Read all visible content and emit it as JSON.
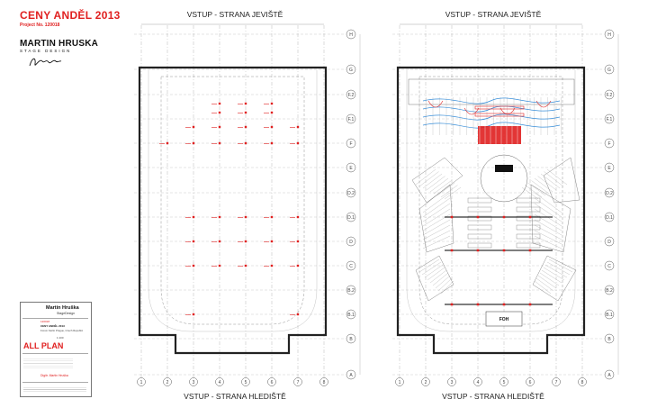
{
  "brand": {
    "title": "CENY ANDĚL 2013",
    "project": "Project No. 120018",
    "logo_name": "MARTIN HRUSKA",
    "logo_sub": "STAGE DESIGN"
  },
  "views": [
    {
      "top_label": "VSTUP - STRANA JEVIŠTĚ",
      "bottom_label": "VSTUP - STRANA HLEDIŠTĚ"
    },
    {
      "top_label": "VSTUP - STRANA JEVIŠTĚ",
      "bottom_label": "VSTUP - STRANA HLEDIŠTĚ"
    }
  ],
  "grid": {
    "rows": [
      "H",
      "G",
      "F.2",
      "F.1",
      "F",
      "E",
      "D.2",
      "D.1",
      "D",
      "C",
      "B.2",
      "B.1",
      "B",
      "A"
    ],
    "columns": [
      "1",
      "2",
      "3",
      "4",
      "5",
      "6",
      "7",
      "8"
    ]
  },
  "stamp": {
    "company": "Martin Hruška",
    "company_sub": "StageDesign",
    "project_no": "120018",
    "event": "CENY ANDĚL 2013",
    "venue": "Forum Karlín Prague, Czech Republic",
    "plan_title": "ALL PLAN",
    "scale": "1:100",
    "drawn_by": "Digitr. Martin Hruška"
  },
  "foh_label": "FOH",
  "colors": {
    "accent": "#e02020",
    "rigging": "#3a8fd9",
    "line": "#222222"
  }
}
